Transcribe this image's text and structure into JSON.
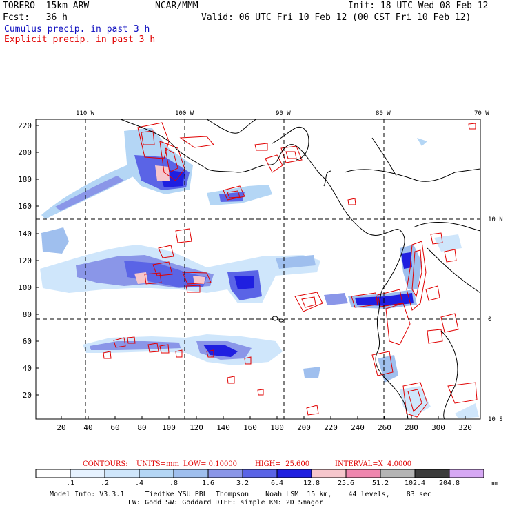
{
  "header": {
    "model": "TORERO  15km ARW",
    "org": "NCAR/MMM",
    "init": "Init: 18 UTC Wed 08 Feb 12",
    "fcst": "Fcst:   36 h",
    "valid": "Valid: 06 UTC Fri 10 Feb 12 (00 CST Fri 10 Feb 12)",
    "cumulus_label": "Cumulus precip. in past 3 h",
    "explicit_label": "Explicit precip. in past 3 h"
  },
  "map": {
    "lon_labels": [
      "110 W",
      "100 W",
      "90 W",
      "80 W",
      "70 W"
    ],
    "lat_labels": [
      "10 N",
      "0",
      "10 S"
    ],
    "y_ticks": [
      "220",
      "200",
      "180",
      "160",
      "140",
      "120",
      "100",
      "80",
      "60",
      "40",
      "20"
    ],
    "x_ticks": [
      "20",
      "40",
      "60",
      "80",
      "100",
      "120",
      "140",
      "160",
      "180",
      "200",
      "220",
      "240",
      "260",
      "280",
      "300",
      "320"
    ]
  },
  "contours": {
    "label": "CONTOURS:",
    "units": "UNITS=mm",
    "low": "LOW= 0.10000",
    "high": "HIGH=  25.600",
    "interval": "INTERVAL=X  4.0000"
  },
  "colorbar": {
    "labels": [
      ".1",
      ".2",
      ".4",
      ".8",
      "1.6",
      "3.2",
      "6.4",
      "12.8",
      "25.6",
      "51.2",
      "102.4",
      "204.8"
    ],
    "unit": "mm",
    "colors": [
      "#ffffff",
      "#e6f2ff",
      "#cfe6fb",
      "#b4d6f5",
      "#9fbfee",
      "#8a96e8",
      "#5a64e6",
      "#1f1fe0",
      "#f6c6cc",
      "#ef86ae",
      "#b4b4b4",
      "#3c3c3c",
      "#d6a8f4"
    ]
  },
  "footer": {
    "line1": "Model Info: V3.3.1     Tiedtke YSU PBL  Thompson    Noah LSM  15 km,    44 levels,    83 sec",
    "line2": "LW: Godd SW: Goddard DIFF: simple KM: 2D Smagor"
  }
}
